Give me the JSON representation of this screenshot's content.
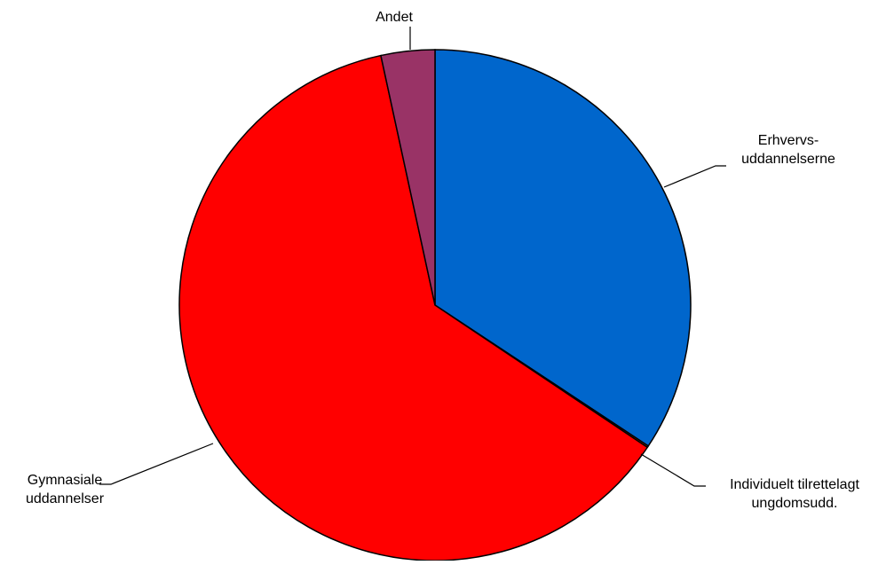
{
  "chart_data": {
    "type": "pie",
    "title": "",
    "slices": [
      {
        "label_lines": [
          "Erhvervs-",
          "uddannelserne"
        ],
        "value": 34.3,
        "color": "#0066CC"
      },
      {
        "label_lines": [
          "Individuelt tilrettelagt",
          "ungdomsudd."
        ],
        "value": 0.1,
        "color": "#FF6600"
      },
      {
        "label_lines": [
          "Gymnasiale",
          "uddannelser"
        ],
        "value": 62.2,
        "color": "#FF0000"
      },
      {
        "label_lines": [
          "Andet"
        ],
        "value": 3.4,
        "color": "#993366"
      }
    ]
  }
}
